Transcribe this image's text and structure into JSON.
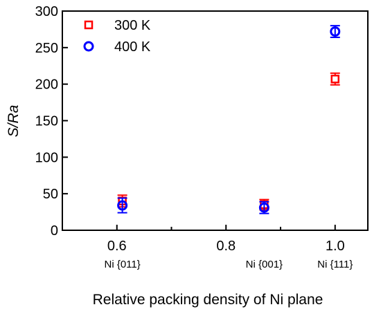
{
  "chart_data": {
    "type": "scatter",
    "title": "",
    "xlabel": "Relative packing density of Ni plane",
    "ylabel": "S/Ra",
    "xlim": [
      0.5,
      1.06
    ],
    "ylim": [
      0,
      300
    ],
    "xticks": [
      0.6,
      0.8,
      1.0
    ],
    "xtick_labels": [
      "0.6",
      "0.8",
      "1.0"
    ],
    "yticks": [
      0,
      50,
      100,
      150,
      200,
      250,
      300
    ],
    "ytick_labels": [
      "0",
      "50",
      "100",
      "150",
      "200",
      "250",
      "300"
    ],
    "grid": false,
    "legend": "top-left",
    "plane_labels": [
      {
        "x": 0.61,
        "label": "Ni {011}"
      },
      {
        "x": 0.87,
        "label": "Ni {001}"
      },
      {
        "x": 1.0,
        "label": "Ni {111}"
      }
    ],
    "series": [
      {
        "name": "300 K",
        "marker": "square",
        "color": "#ff0000",
        "points": [
          {
            "x": 0.61,
            "y": 40,
            "err": 8
          },
          {
            "x": 0.87,
            "y": 35,
            "err": 7
          },
          {
            "x": 1.0,
            "y": 207,
            "err": 8
          }
        ]
      },
      {
        "name": "400 K",
        "marker": "circle",
        "color": "#0000ff",
        "points": [
          {
            "x": 0.61,
            "y": 34,
            "err": 10
          },
          {
            "x": 0.87,
            "y": 31,
            "err": 8
          },
          {
            "x": 1.0,
            "y": 272,
            "err": 8
          }
        ]
      }
    ]
  }
}
